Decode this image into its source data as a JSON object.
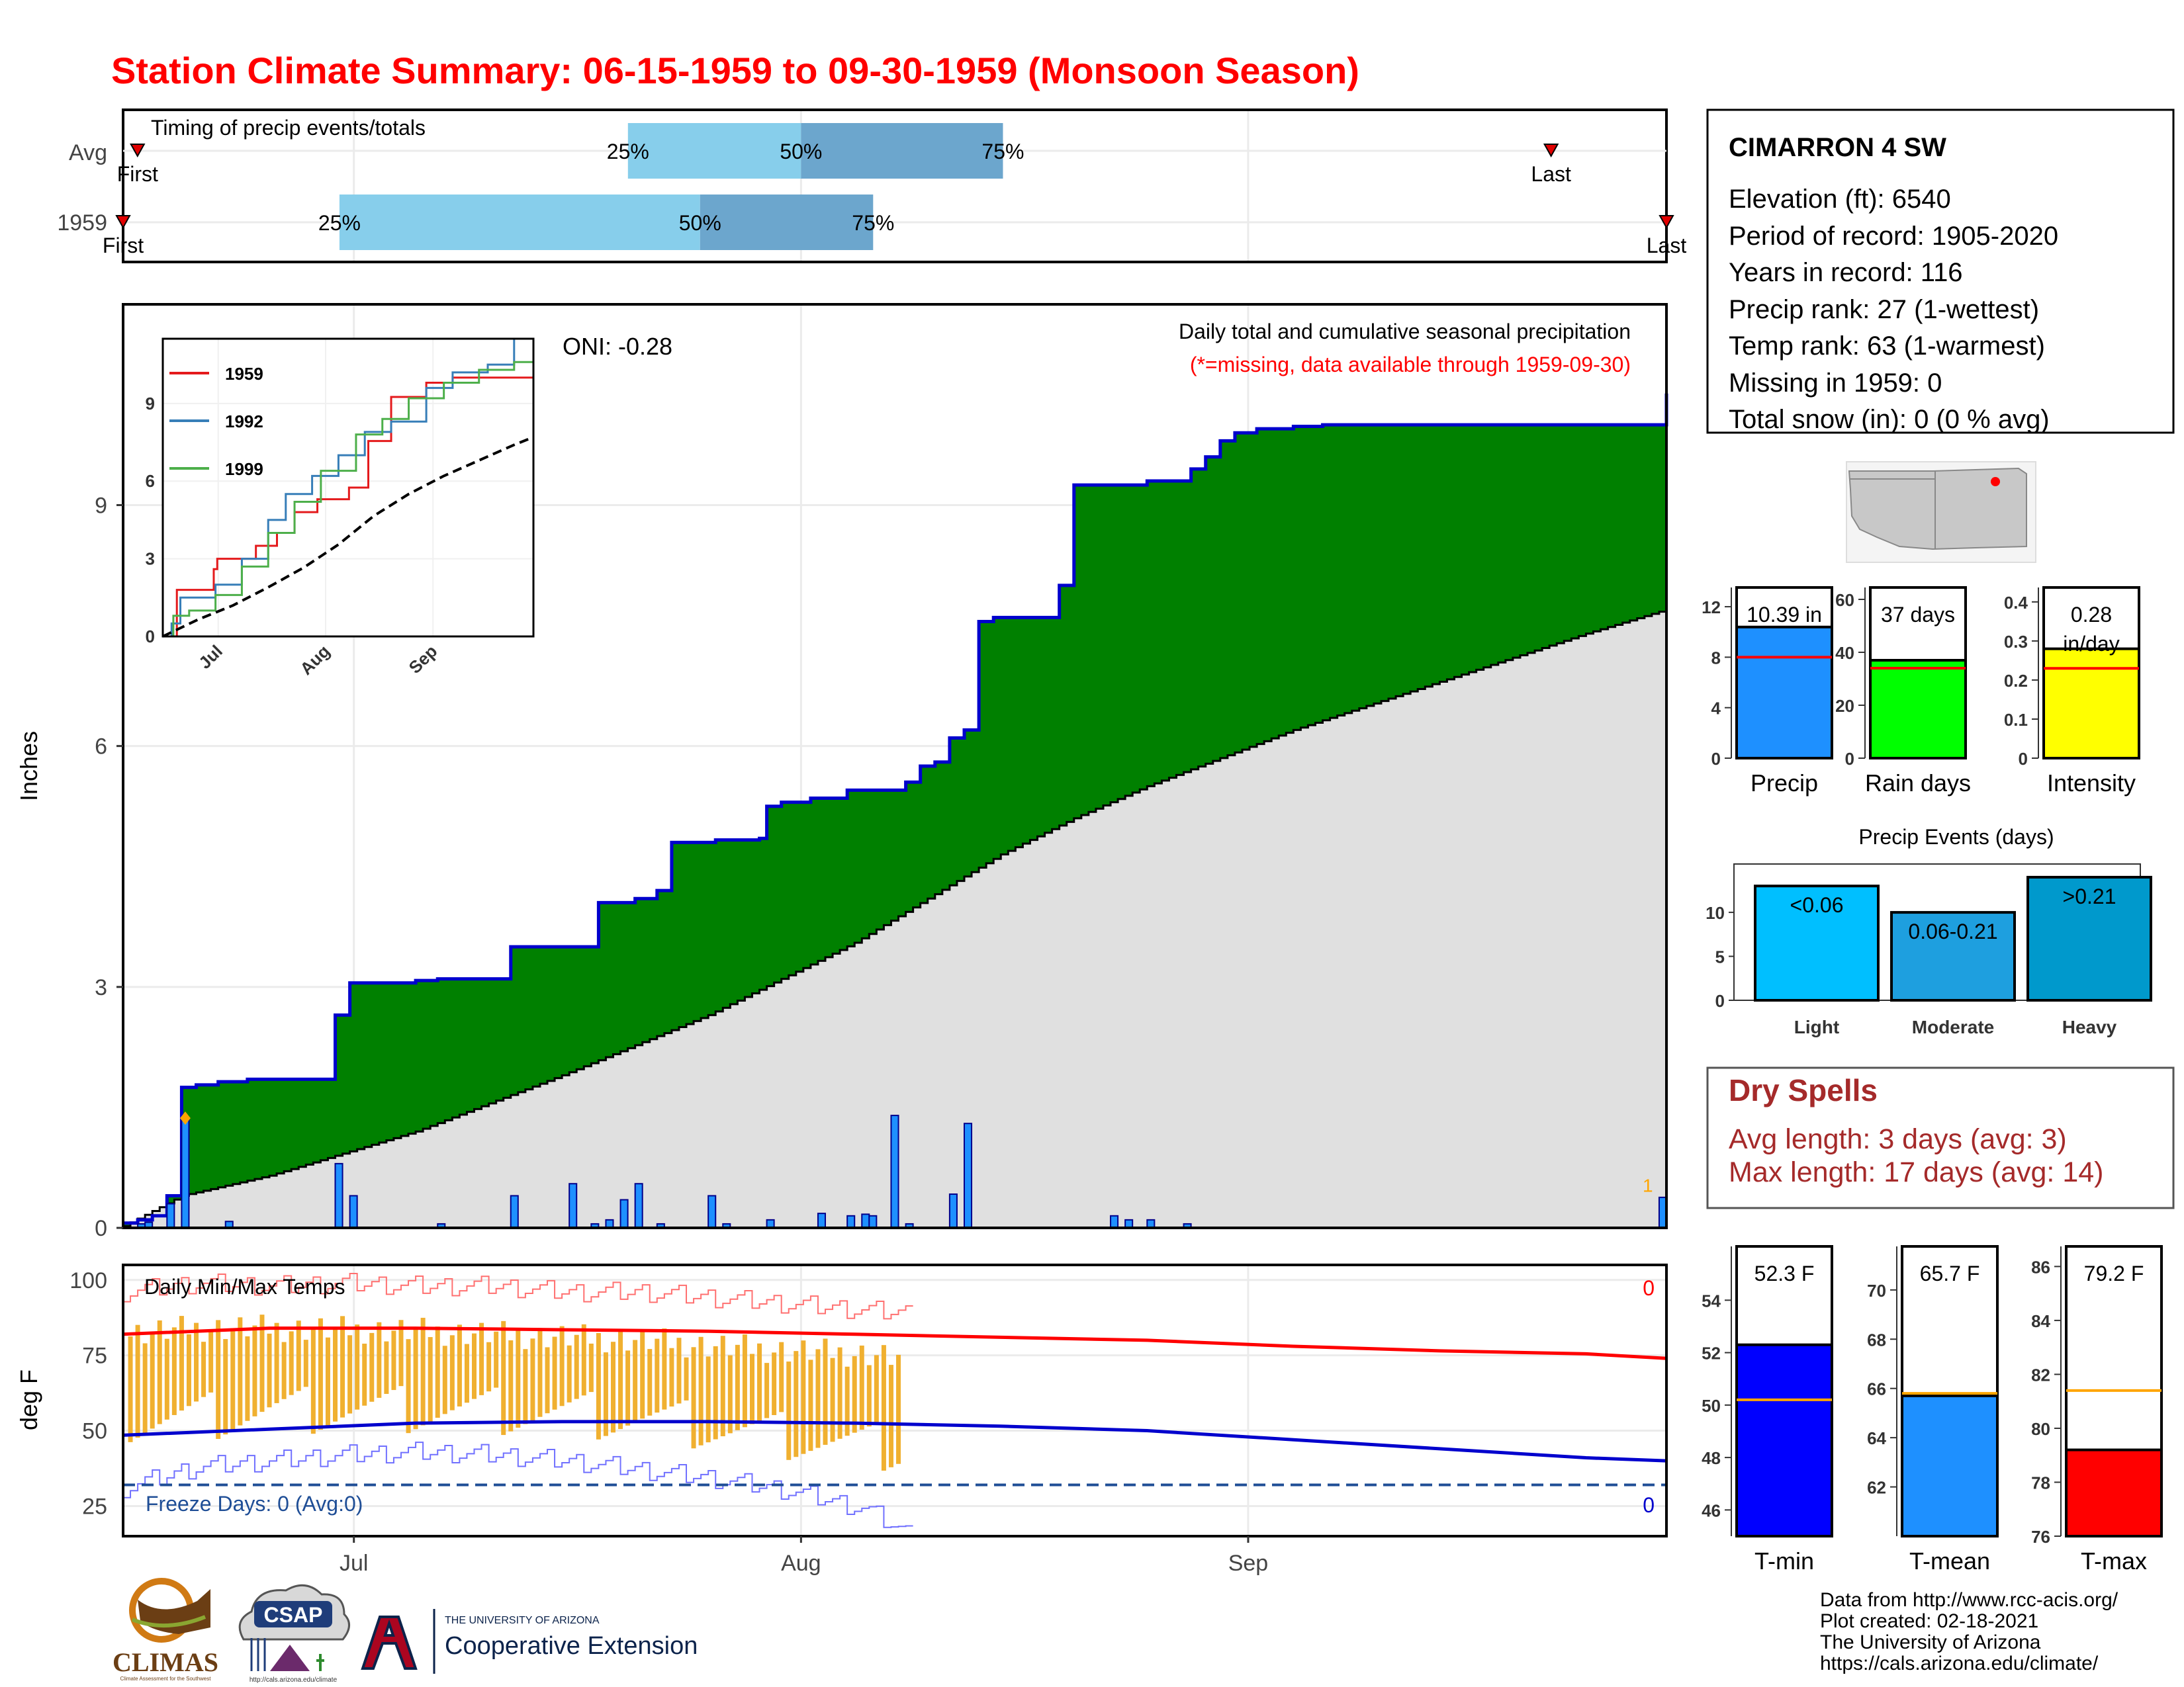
{
  "title": "Station Climate Summary: 06-15-1959 to 09-30-1959 (Monsoon Season)",
  "station": {
    "name": "CIMARRON 4 SW",
    "lines": [
      "Elevation (ft): 6540",
      "Period of record: 1905-2020",
      "Years in record: 116",
      "Precip rank: 27 (1-wettest)",
      "Temp rank: 63 (1-warmest)",
      "Missing in 1959: 0",
      "Total snow (in): 0 (0 % avg)"
    ]
  },
  "colors": {
    "title": "#ff0000",
    "cumulative_fill": "#008000",
    "cumulative_outline": "#0000cd",
    "climatology_fill": "#e0e0e0",
    "daily_bar": "#1e90ff",
    "quartile_light": "#87ceeb",
    "quartile_dark": "#6ca6cd",
    "temp_bar": "#f0b030",
    "tmax_line": "#ff0000",
    "tmin_line": "#0000cd",
    "dry_spells": "#a52a2a"
  },
  "chart_data": [
    {
      "id": "timing",
      "type": "bar",
      "title": "Timing of precip events/totals",
      "categories": [
        "Avg",
        "1959"
      ],
      "x_axis": "date",
      "series": [
        {
          "row": "Avg",
          "first": "1959-06-16",
          "q25": "1959-07-20",
          "q50": "1959-08-01",
          "q75": "1959-08-15",
          "last": "1959-09-22"
        },
        {
          "row": "1959",
          "first": "1959-06-15",
          "q25": "1959-06-30",
          "q50": "1959-07-25",
          "q75": "1959-08-06",
          "last": "1959-09-30"
        }
      ],
      "labels": {
        "first": "First",
        "last": "Last",
        "q25": "25%",
        "q50": "50%",
        "q75": "75%"
      }
    },
    {
      "id": "precip",
      "type": "area",
      "title": "Daily total and cumulative seasonal precipitation",
      "subtitle": "(*=missing, data available through 1959-09-30)",
      "annotation": "ONI: -0.28",
      "ylabel": "Inches",
      "ylim": [
        0,
        11.5
      ],
      "yticks": [
        0,
        3,
        6,
        9
      ],
      "xticks": [
        "Jul",
        "Aug",
        "Sep"
      ],
      "marker_label": "1",
      "cumulative_1959": [
        [
          0,
          0.06
        ],
        [
          2,
          0.1
        ],
        [
          4,
          0.15
        ],
        [
          6,
          0.4
        ],
        [
          8,
          1.75
        ],
        [
          10,
          1.78
        ],
        [
          13,
          1.82
        ],
        [
          17,
          1.85
        ],
        [
          29,
          2.65
        ],
        [
          31,
          3.05
        ],
        [
          40,
          3.08
        ],
        [
          43,
          3.1
        ],
        [
          53,
          3.5
        ],
        [
          65,
          4.05
        ],
        [
          70,
          4.1
        ],
        [
          73,
          4.2
        ],
        [
          75,
          4.8
        ],
        [
          81,
          4.83
        ],
        [
          87,
          4.85
        ],
        [
          88,
          5.25
        ],
        [
          90,
          5.3
        ],
        [
          94,
          5.35
        ],
        [
          99,
          5.45
        ],
        [
          107,
          5.55
        ],
        [
          109,
          5.75
        ],
        [
          111,
          5.8
        ],
        [
          113,
          6.1
        ],
        [
          115,
          6.2
        ],
        [
          117,
          7.55
        ],
        [
          119,
          7.6
        ],
        [
          128,
          8.0
        ],
        [
          130,
          9.25
        ],
        [
          140,
          9.3
        ],
        [
          146,
          9.45
        ],
        [
          148,
          9.6
        ],
        [
          150,
          9.8
        ],
        [
          152,
          9.9
        ],
        [
          155,
          9.95
        ],
        [
          160,
          9.98
        ],
        [
          164,
          10.0
        ],
        [
          168,
          10.0
        ],
        [
          208,
          10.0
        ],
        [
          211,
          10.39
        ]
      ],
      "climatology_avg": [
        [
          0,
          0.02
        ],
        [
          8,
          0.4
        ],
        [
          20,
          0.65
        ],
        [
          40,
          1.2
        ],
        [
          60,
          1.9
        ],
        [
          80,
          2.65
        ],
        [
          100,
          3.55
        ],
        [
          110,
          4.1
        ],
        [
          120,
          4.65
        ],
        [
          130,
          5.1
        ],
        [
          140,
          5.5
        ],
        [
          150,
          5.85
        ],
        [
          160,
          6.2
        ],
        [
          170,
          6.5
        ],
        [
          180,
          6.8
        ],
        [
          190,
          7.1
        ],
        [
          200,
          7.4
        ],
        [
          211,
          7.7
        ]
      ],
      "daily_bars": [
        [
          2,
          0.05
        ],
        [
          3,
          0.07
        ],
        [
          6,
          0.3
        ],
        [
          8,
          1.35
        ],
        [
          14,
          0.08
        ],
        [
          29,
          0.8
        ],
        [
          31,
          0.4
        ],
        [
          43,
          0.05
        ],
        [
          53,
          0.4
        ],
        [
          61,
          0.55
        ],
        [
          64,
          0.05
        ],
        [
          66,
          0.1
        ],
        [
          68,
          0.35
        ],
        [
          70,
          0.55
        ],
        [
          73,
          0.05
        ],
        [
          80,
          0.4
        ],
        [
          82,
          0.05
        ],
        [
          88,
          0.1
        ],
        [
          95,
          0.18
        ],
        [
          99,
          0.15
        ],
        [
          101,
          0.17
        ],
        [
          102,
          0.15
        ],
        [
          105,
          1.4
        ],
        [
          107,
          0.05
        ],
        [
          113,
          0.42
        ],
        [
          115,
          1.3
        ],
        [
          135,
          0.15
        ],
        [
          137,
          0.1
        ],
        [
          140,
          0.1
        ],
        [
          145,
          0.05
        ],
        [
          210,
          0.38
        ]
      ]
    },
    {
      "id": "inset",
      "type": "line",
      "yticks": [
        0,
        3,
        6,
        9
      ],
      "xticks": [
        "Jul",
        "Aug",
        "Sep"
      ],
      "series": [
        {
          "name": "1959",
          "color": "#e41a1c",
          "values": [
            [
              0,
              0
            ],
            [
              8,
              1.8
            ],
            [
              29,
              2.6
            ],
            [
              31,
              3.0
            ],
            [
              53,
              3.5
            ],
            [
              65,
              4.0
            ],
            [
              75,
              4.8
            ],
            [
              88,
              5.3
            ],
            [
              106,
              5.75
            ],
            [
              117,
              7.55
            ],
            [
              130,
              9.25
            ],
            [
              150,
              9.8
            ],
            [
              165,
              10.0
            ],
            [
              211,
              10.39
            ]
          ]
        },
        {
          "name": "1992",
          "color": "#377eb8",
          "values": [
            [
              0,
              0
            ],
            [
              5,
              0.5
            ],
            [
              10,
              1.5
            ],
            [
              30,
              2.0
            ],
            [
              45,
              3.0
            ],
            [
              60,
              4.5
            ],
            [
              70,
              5.5
            ],
            [
              85,
              6.2
            ],
            [
              100,
              7.0
            ],
            [
              115,
              7.9
            ],
            [
              130,
              8.3
            ],
            [
              150,
              9.6
            ],
            [
              165,
              10.2
            ],
            [
              185,
              10.5
            ],
            [
              200,
              11.5
            ],
            [
              211,
              11.5
            ]
          ]
        },
        {
          "name": "1999",
          "color": "#4daf4a",
          "values": [
            [
              0,
              0
            ],
            [
              6,
              0.8
            ],
            [
              15,
              1.0
            ],
            [
              30,
              1.6
            ],
            [
              45,
              2.7
            ],
            [
              60,
              4.0
            ],
            [
              75,
              5.2
            ],
            [
              90,
              6.4
            ],
            [
              110,
              7.8
            ],
            [
              125,
              8.4
            ],
            [
              140,
              9.2
            ],
            [
              160,
              9.8
            ],
            [
              180,
              10.3
            ],
            [
              200,
              10.6
            ],
            [
              211,
              10.6
            ]
          ]
        },
        {
          "name": "avg",
          "color": "#000000",
          "values": [
            [
              0,
              0
            ],
            [
              20,
              0.65
            ],
            [
              40,
              1.2
            ],
            [
              60,
              1.9
            ],
            [
              80,
              2.65
            ],
            [
              100,
              3.55
            ],
            [
              120,
              4.65
            ],
            [
              140,
              5.5
            ],
            [
              160,
              6.2
            ],
            [
              180,
              6.8
            ],
            [
              200,
              7.4
            ],
            [
              211,
              7.7
            ]
          ]
        }
      ]
    },
    {
      "id": "precip_bars",
      "type": "bar",
      "panels": [
        {
          "label": "Precip",
          "value": 10.39,
          "avg": 8.0,
          "value_label": "10.39 in",
          "ylim": [
            0,
            13
          ],
          "yticks": [
            0,
            4,
            8,
            12
          ],
          "color": "#1e90ff"
        },
        {
          "label": "Rain days",
          "value": 37,
          "avg": 34,
          "value_label": "37 days",
          "ylim": [
            0,
            62
          ],
          "yticks": [
            0,
            20,
            40,
            60
          ],
          "color": "#00ff00"
        },
        {
          "label": "Intensity",
          "value": 0.28,
          "avg": 0.23,
          "value_label": "0.28",
          "value_label2": "in/day",
          "ylim": [
            0,
            0.42
          ],
          "yticks": [
            0.0,
            0.1,
            0.2,
            0.3,
            0.4
          ],
          "color": "#ffff00"
        }
      ]
    },
    {
      "id": "events",
      "type": "bar",
      "title": "Precip Events (days)",
      "categories": [
        "Light",
        "Moderate",
        "Heavy"
      ],
      "values": [
        13,
        10,
        14
      ],
      "bar_labels": [
        "<0.06",
        "0.06-0.21",
        ">0.21"
      ],
      "ylim": [
        0,
        15.5
      ],
      "yticks": [
        0,
        5,
        10
      ],
      "colors": [
        "#00bfff",
        "#1e9fdf",
        "#0099cc"
      ]
    },
    {
      "id": "temps",
      "type": "line",
      "title": "Daily Min/Max Temps",
      "ylabel": "deg F",
      "ylim": [
        15,
        105
      ],
      "yticks": [
        25,
        50,
        75,
        100
      ],
      "xticks": [
        "Jul",
        "Aug",
        "Sep"
      ],
      "freeze_label": "Freeze Days: 0 (Avg:0)",
      "freeze_line": 32,
      "max_count": "0",
      "min_count": "0",
      "tmax_avg": [
        [
          0,
          82
        ],
        [
          20,
          84
        ],
        [
          40,
          84
        ],
        [
          60,
          83.5
        ],
        [
          80,
          83
        ],
        [
          100,
          82
        ],
        [
          120,
          81
        ],
        [
          140,
          80
        ],
        [
          160,
          78
        ],
        [
          180,
          76.5
        ],
        [
          200,
          75.5
        ],
        [
          211,
          74
        ]
      ],
      "tmin_avg": [
        [
          0,
          48.5
        ],
        [
          20,
          50.5
        ],
        [
          40,
          52.5
        ],
        [
          60,
          53
        ],
        [
          80,
          53
        ],
        [
          100,
          52.5
        ],
        [
          120,
          51.5
        ],
        [
          140,
          50
        ],
        [
          160,
          47
        ],
        [
          180,
          44
        ],
        [
          200,
          41
        ],
        [
          211,
          40
        ]
      ],
      "tmax_extreme": [
        [
          0,
          96
        ],
        [
          20,
          99
        ],
        [
          40,
          98
        ],
        [
          60,
          99
        ],
        [
          80,
          98
        ],
        [
          100,
          98
        ],
        [
          120,
          96
        ],
        [
          140,
          96
        ],
        [
          160,
          94
        ],
        [
          180,
          92
        ],
        [
          200,
          90
        ],
        [
          211,
          89
        ]
      ],
      "tmin_extreme": [
        [
          0,
          31
        ],
        [
          20,
          38
        ],
        [
          40,
          40
        ],
        [
          60,
          42
        ],
        [
          80,
          43
        ],
        [
          100,
          42
        ],
        [
          120,
          40
        ],
        [
          140,
          37
        ],
        [
          160,
          34
        ],
        [
          180,
          30
        ],
        [
          200,
          24
        ],
        [
          211,
          16
        ]
      ],
      "daily_range_avg": [
        47,
        80
      ]
    },
    {
      "id": "temp_bars",
      "type": "bar",
      "panels": [
        {
          "label": "T-min",
          "value": 52.3,
          "avg": 50.2,
          "value_label": "52.3 F",
          "ylim": [
            45,
            55.8
          ],
          "yticks": [
            46,
            48,
            50,
            52,
            54
          ],
          "color": "#0000ff"
        },
        {
          "label": "T-mean",
          "value": 65.7,
          "avg": 65.8,
          "value_label": "65.7 F",
          "ylim": [
            60,
            71.5
          ],
          "yticks": [
            62,
            64,
            66,
            68,
            70
          ],
          "color": "#1e90ff"
        },
        {
          "label": "T-max",
          "value": 79.2,
          "avg": 81.4,
          "value_label": "79.2 F",
          "ylim": [
            76,
            86.5
          ],
          "yticks": [
            76,
            78,
            80,
            82,
            84,
            86
          ],
          "color": "#ff0000"
        }
      ]
    }
  ],
  "dry_spells": {
    "title": "Dry Spells",
    "avg": "Avg length: 3 days (avg: 3)",
    "max": "Max length: 17 days (avg: 14)"
  },
  "footer": {
    "lines": [
      "Data from http://www.rcc-acis.org/",
      "Plot created: 02-18-2021",
      "The University of Arizona",
      "https://cals.arizona.edu/climate/"
    ],
    "logos": {
      "climas": "CLIMAS",
      "climas_sub": "Climate Assessment for the Southwest",
      "csap": "CSAP",
      "csap_url": "http://cals.arizona.edu/climate",
      "ua_top": "THE UNIVERSITY OF ARIZONA",
      "ua_bottom": "Cooperative Extension"
    }
  }
}
